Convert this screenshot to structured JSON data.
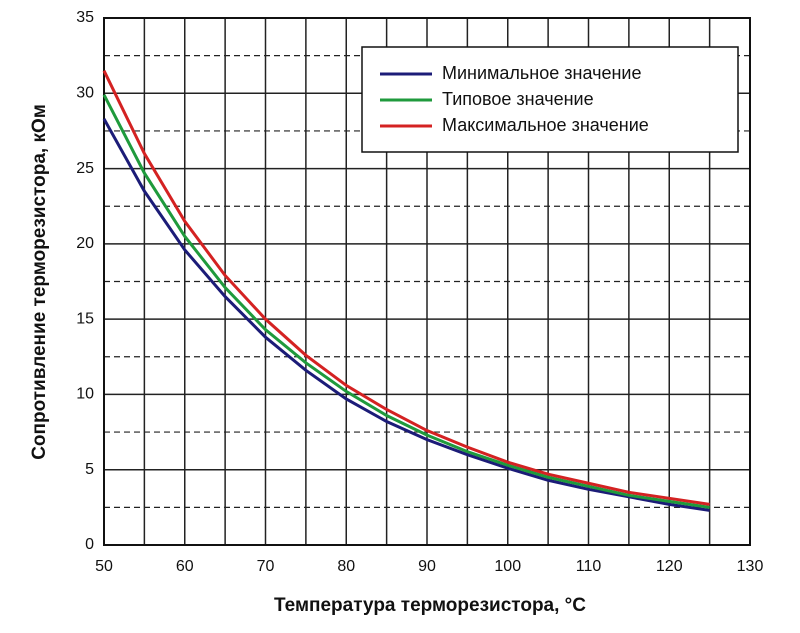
{
  "chart_data": {
    "type": "line",
    "x_label": "Температура терморезистора, °C",
    "y_label": "Сопротивление терморезистора, кОм",
    "x": [
      50,
      55,
      60,
      65,
      70,
      75,
      80,
      85,
      90,
      95,
      100,
      105,
      110,
      115,
      120,
      125
    ],
    "series": [
      {
        "name": "Минимальное значение",
        "color": "#1c1c78",
        "values": [
          28.3,
          23.5,
          19.6,
          16.5,
          13.8,
          11.6,
          9.7,
          8.2,
          7.0,
          6.0,
          5.1,
          4.3,
          3.7,
          3.2,
          2.7,
          2.3
        ]
      },
      {
        "name": "Типовое значение",
        "color": "#1f9a3c",
        "values": [
          29.9,
          24.7,
          20.5,
          17.1,
          14.3,
          12.1,
          10.2,
          8.6,
          7.3,
          6.2,
          5.3,
          4.5,
          3.9,
          3.3,
          2.9,
          2.5
        ]
      },
      {
        "name": "Максимальное значение",
        "color": "#d42222",
        "values": [
          31.5,
          26.0,
          21.5,
          17.9,
          15.0,
          12.6,
          10.6,
          9.0,
          7.6,
          6.5,
          5.5,
          4.7,
          4.1,
          3.5,
          3.1,
          2.7
        ]
      }
    ],
    "xlim": [
      50,
      130
    ],
    "xticks": [
      50,
      60,
      70,
      80,
      90,
      100,
      110,
      120,
      130
    ],
    "ylim": [
      0,
      35
    ],
    "yticks": [
      0,
      5,
      10,
      15,
      20,
      25,
      30,
      35
    ],
    "x_minor_grid": [
      55,
      65,
      75,
      85,
      95,
      105,
      115,
      125
    ],
    "y_dashed_grid": [
      2.5,
      7.5,
      12.5,
      17.5,
      22.5,
      27.5,
      32.5
    ],
    "grid": true,
    "legend": "upper right"
  }
}
